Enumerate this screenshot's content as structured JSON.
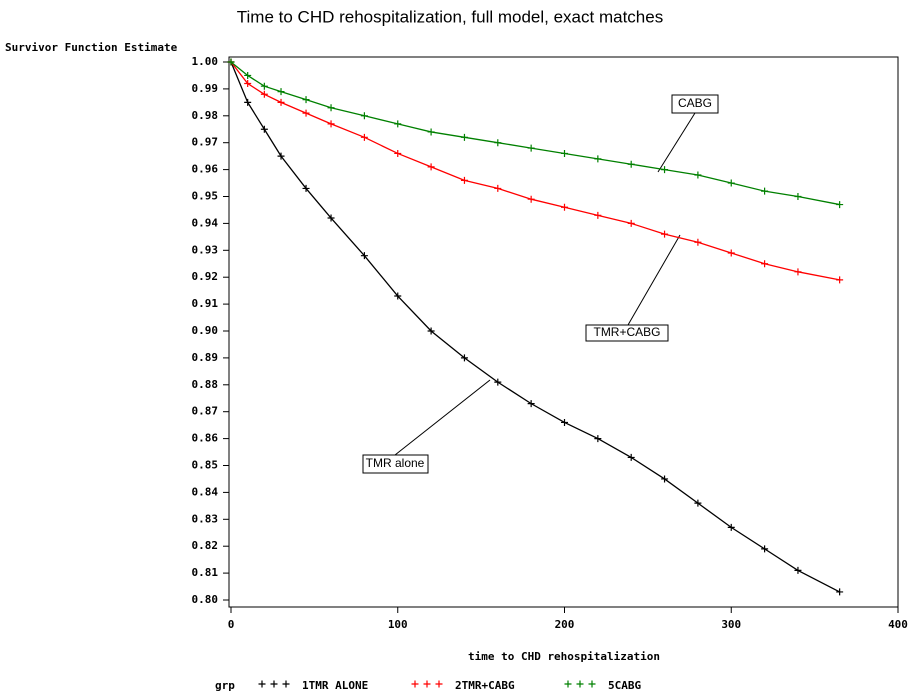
{
  "chart_data": {
    "type": "line",
    "title": "Time to CHD rehospitalization, full model, exact matches",
    "y_label": "Survivor Function Estimate",
    "x_label": "time to CHD rehospitalization",
    "legend_title": "grp",
    "x": [
      0,
      10,
      20,
      30,
      45,
      60,
      80,
      100,
      120,
      140,
      160,
      180,
      200,
      220,
      240,
      260,
      280,
      300,
      320,
      340,
      365
    ],
    "series": [
      {
        "name": "1TMR ALONE",
        "color": "#000000",
        "values": [
          1.0,
          0.985,
          0.975,
          0.965,
          0.953,
          0.942,
          0.928,
          0.913,
          0.9,
          0.89,
          0.881,
          0.873,
          0.866,
          0.86,
          0.853,
          0.845,
          0.836,
          0.827,
          0.819,
          0.811,
          0.803
        ]
      },
      {
        "name": "2TMR+CABG",
        "color": "#ff0000",
        "values": [
          1.0,
          0.992,
          0.988,
          0.985,
          0.981,
          0.977,
          0.972,
          0.966,
          0.961,
          0.956,
          0.953,
          0.949,
          0.946,
          0.943,
          0.94,
          0.936,
          0.933,
          0.929,
          0.925,
          0.922,
          0.919
        ]
      },
      {
        "name": "5CABG",
        "color": "#008000",
        "values": [
          1.0,
          0.995,
          0.991,
          0.989,
          0.986,
          0.983,
          0.98,
          0.977,
          0.974,
          0.972,
          0.97,
          0.968,
          0.966,
          0.964,
          0.962,
          0.96,
          0.958,
          0.955,
          0.952,
          0.95,
          0.947
        ]
      }
    ],
    "annotations": [
      "CABG",
      "TMR+CABG",
      "TMR alone"
    ],
    "xlim": [
      0,
      400
    ],
    "xticks": [
      0,
      100,
      200,
      300,
      400
    ],
    "ylim": [
      0.8,
      1.0
    ],
    "yticks": [
      {
        "value": 0.8,
        "label": "0.80"
      },
      0.81,
      0.82,
      0.83,
      0.84,
      0.85,
      0.86,
      0.87,
      0.88,
      0.89,
      {
        "value": 0.9,
        "label": "0.90"
      },
      0.91,
      0.92,
      0.93,
      0.94,
      0.95,
      0.96,
      0.97,
      0.98,
      0.99,
      {
        "value": 1.0,
        "label": "1.00"
      }
    ],
    "grid": false
  }
}
